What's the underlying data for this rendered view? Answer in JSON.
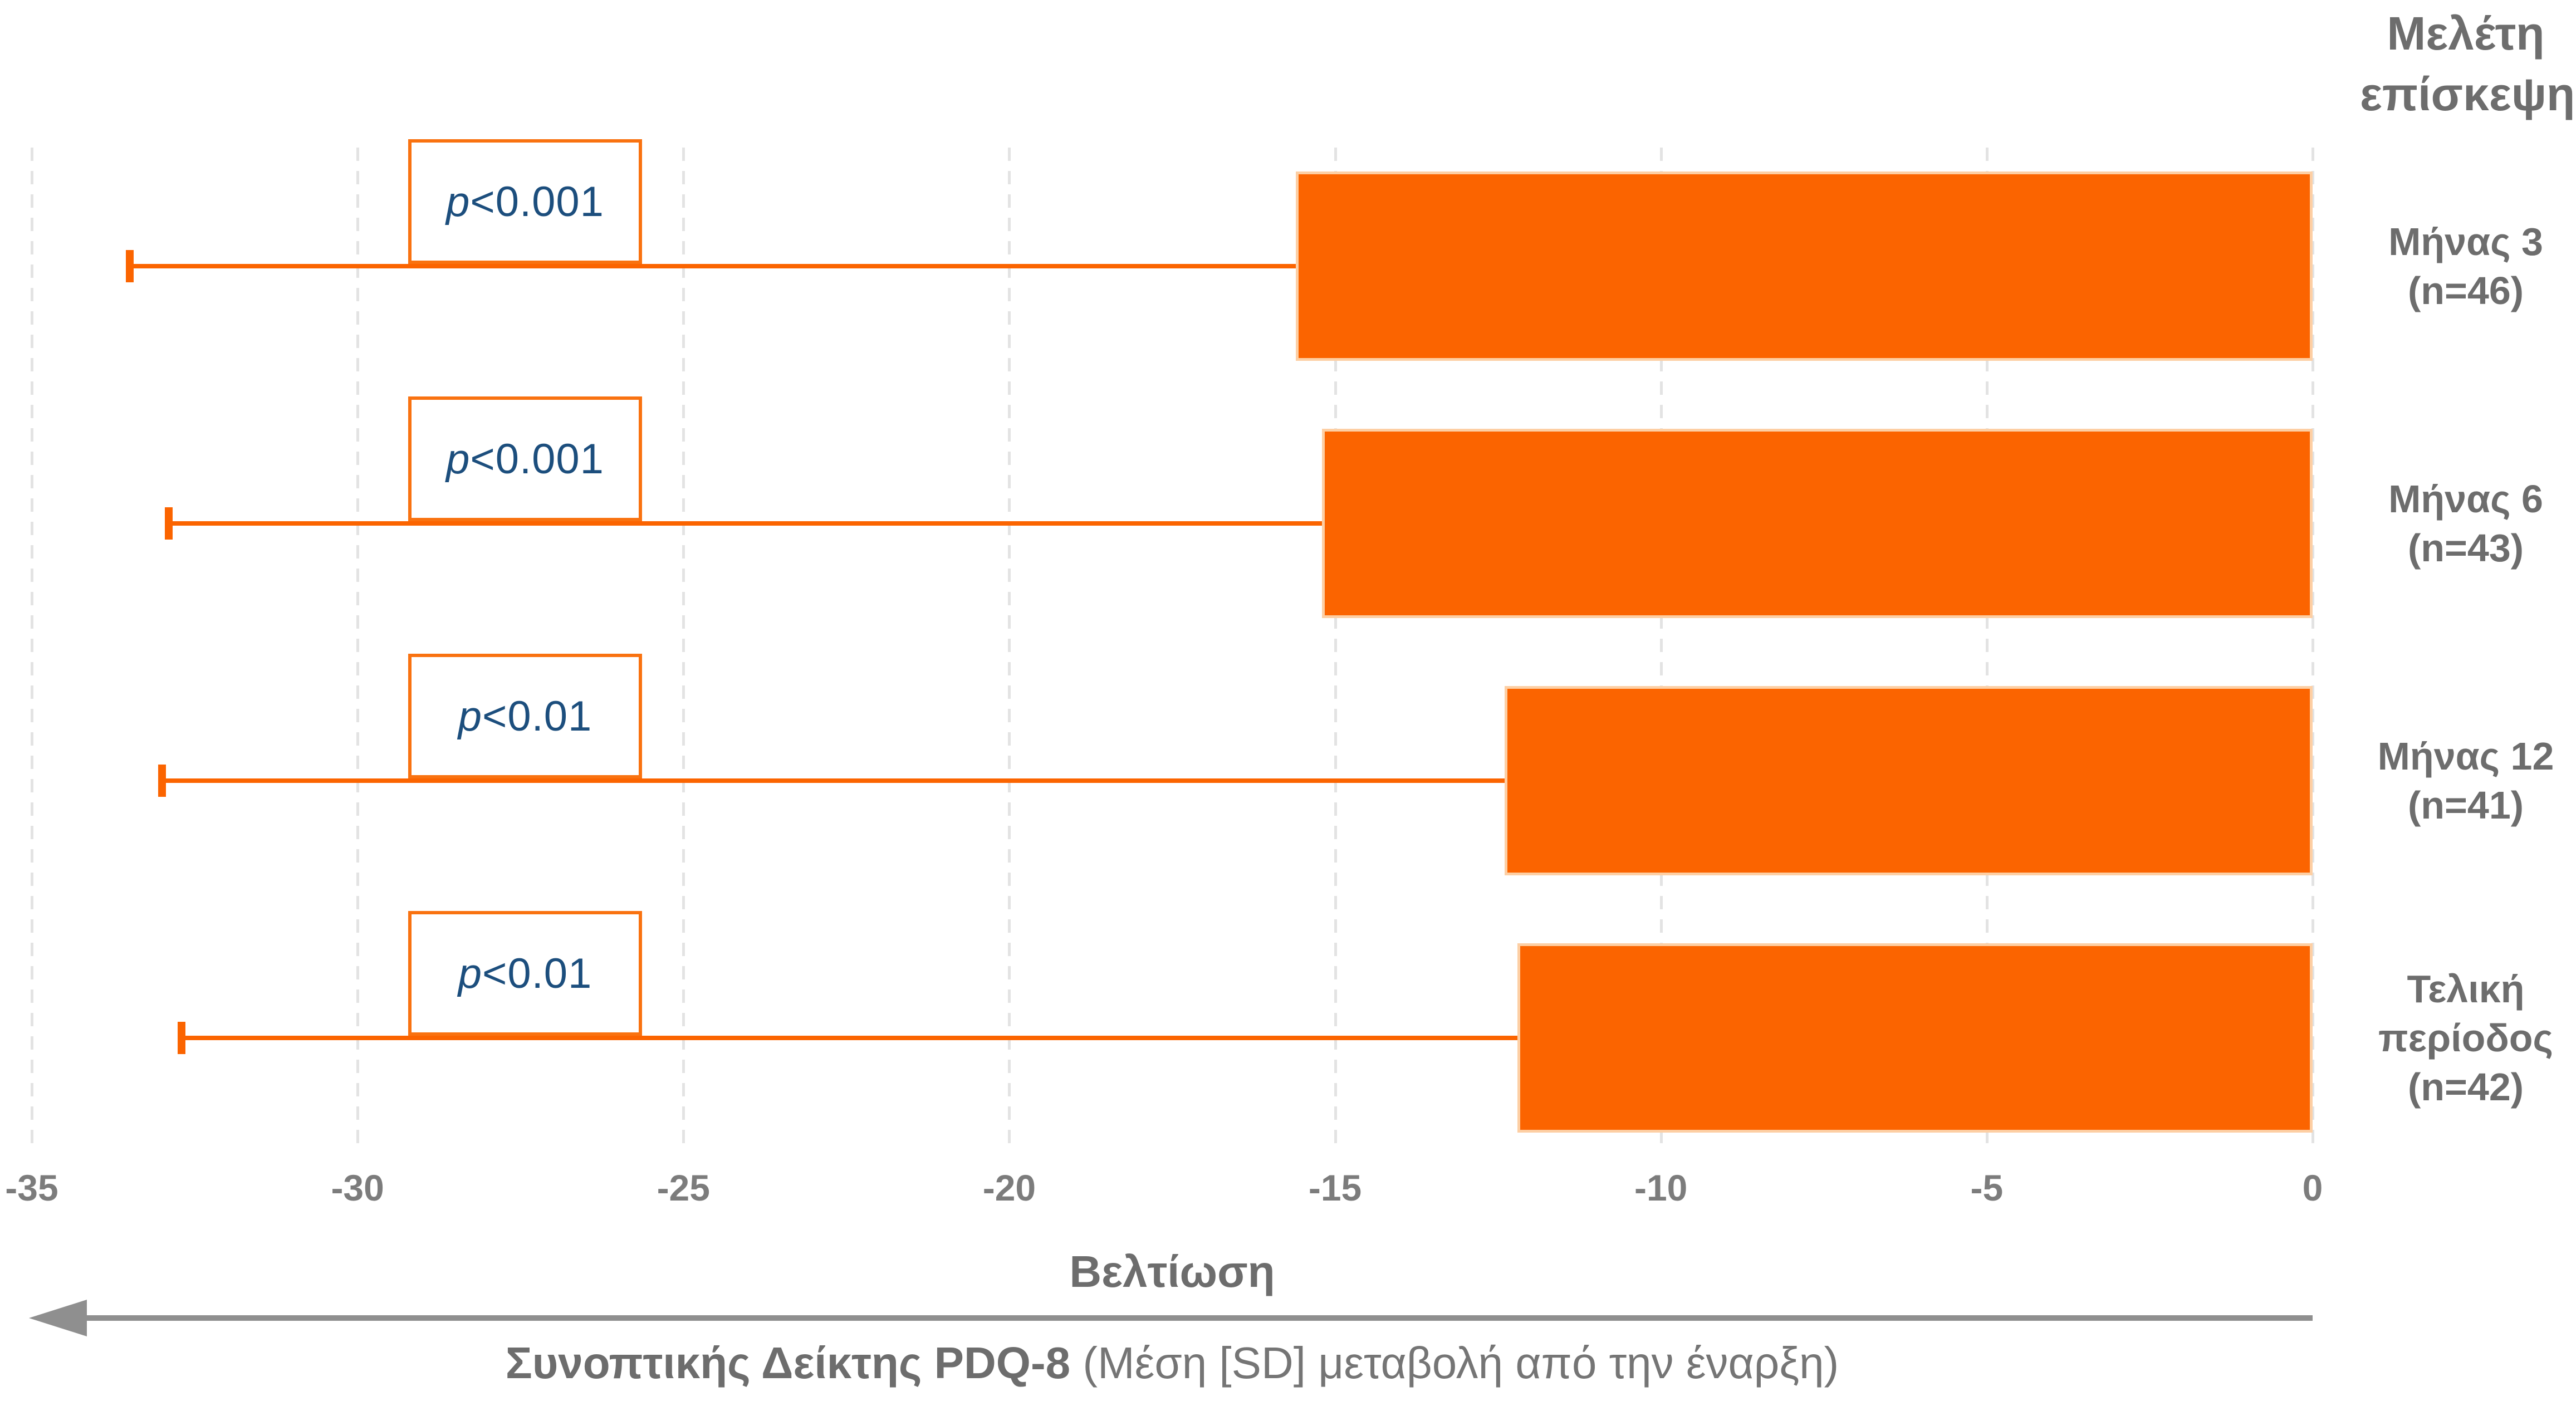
{
  "header": {
    "title_line1": "Μελέτη",
    "title_line2": "επίσκεψης"
  },
  "caption": {
    "bold": "Συνοπτικής Δείκτης PDQ-8",
    "regular": " (Μέση [SD] μεταβολή από την έναρξη)"
  },
  "colors": {
    "bar_orange": "#fb6400",
    "bar_border_light": "#fdcfa4",
    "p_value_text_navy": "#1c4e7d",
    "p_box_border_orange": "#f97210",
    "label_gray": "#6d6d6d",
    "tick_gray": "#7c7c7c",
    "gridline_gray": "#e3e3e3",
    "arrow_gray": "#8f8f8f"
  },
  "chart_data": {
    "type": "bar",
    "orientation": "horizontal",
    "title": "Μελέτη επίσκεψης",
    "xlabel": "Βελτίωση",
    "xlabel_direction": "arrow-pointing-left-means-improvement",
    "value_axis_caption": "Συνοπτικής Δείκτης PDQ-8 (Μέση [SD] μεταβολή από την έναρξη)",
    "xlim": [
      -35,
      0
    ],
    "xticks": [
      -35,
      -30,
      -25,
      -20,
      -15,
      -10,
      -5,
      0
    ],
    "xtick_labels": [
      "-35",
      "-30",
      "-25",
      "-20",
      "-15",
      "-10",
      "-5",
      "0"
    ],
    "grid": "vertical-dashed",
    "legend": null,
    "rows": [
      {
        "category": "Μήνας 3",
        "n_label": "(n=46)",
        "mean": -15.6,
        "sd": 17.9,
        "whisker_end": -33.5,
        "p_label": "p<0.001"
      },
      {
        "category": "Μήνας 6",
        "n_label": "(n=43)",
        "mean": -15.2,
        "sd": 17.7,
        "whisker_end": -32.9,
        "p_label": "p<0.001"
      },
      {
        "category": "Μήνας 12",
        "n_label": "(n=41)",
        "mean": -12.4,
        "sd": 20.6,
        "whisker_end": -33.0,
        "p_label": "p<0.01"
      },
      {
        "category": "Τελική περίοδος",
        "n_label": "(n=42)",
        "mean": -12.2,
        "sd": 20.5,
        "whisker_end": -32.7,
        "p_label": "p<0.01"
      }
    ]
  }
}
